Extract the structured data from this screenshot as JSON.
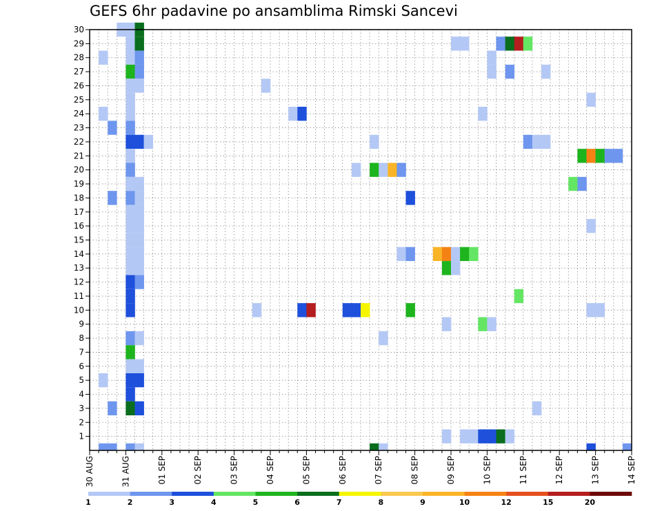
{
  "title": "GEFS 6hr padavine po ansamblima Rimski Sancevi",
  "chart_data": {
    "type": "heatmap",
    "title": "GEFS 6hr padavine po ansamblima Rimski Sancevi",
    "xlabel": "",
    "ylabel": "",
    "x_ticks": [
      "30 AUG",
      "31 AUG",
      "01 SEP",
      "02 SEP",
      "03 SEP",
      "04 SEP",
      "05 SEP",
      "06 SEP",
      "07 SEP",
      "08 SEP",
      "09 SEP",
      "10 SEP",
      "11 SEP",
      "12 SEP",
      "13 SEP",
      "14 SEP"
    ],
    "x_step_hours": 6,
    "y_ticks": [
      1,
      2,
      3,
      4,
      5,
      6,
      7,
      8,
      9,
      10,
      11,
      12,
      13,
      14,
      15,
      16,
      17,
      18,
      19,
      20,
      21,
      22,
      23,
      24,
      25,
      26,
      27,
      28,
      29,
      30
    ],
    "ylim": [
      0,
      30
    ],
    "grid": true,
    "color_scale": {
      "labels": [
        "1",
        "2",
        "3",
        "4",
        "5",
        "6",
        "7",
        "8",
        "9",
        "10",
        "12",
        "15",
        "20"
      ],
      "colors": [
        "#b4c8f5",
        "#6e96ee",
        "#1e50dc",
        "#64e664",
        "#1eb41e",
        "#0a6e1e",
        "#f5f500",
        "#fac850",
        "#fab428",
        "#f58214",
        "#e6501e",
        "#b41e1e",
        "#6e0a0a"
      ]
    },
    "cells": [
      [
        1,
        30,
        1
      ],
      [
        1,
        29,
        1
      ],
      [
        1,
        28,
        1
      ],
      [
        1,
        27,
        5
      ],
      [
        1,
        26,
        1
      ],
      [
        1,
        25,
        1
      ],
      [
        1,
        24,
        1
      ],
      [
        1,
        23,
        2
      ],
      [
        1,
        22,
        3
      ],
      [
        1,
        21,
        1
      ],
      [
        1,
        20,
        2
      ],
      [
        1,
        19,
        1
      ],
      [
        1,
        18,
        2
      ],
      [
        1,
        17,
        1
      ],
      [
        1,
        16,
        1
      ],
      [
        1,
        15,
        1
      ],
      [
        1,
        14,
        1
      ],
      [
        1,
        13,
        1
      ],
      [
        1,
        12,
        3
      ],
      [
        1,
        11,
        3
      ],
      [
        1,
        10,
        3
      ],
      [
        1,
        8,
        2
      ],
      [
        1,
        7,
        5
      ],
      [
        1,
        6,
        1
      ],
      [
        1,
        5,
        3
      ],
      [
        1,
        4,
        3
      ],
      [
        1,
        3,
        6
      ],
      [
        1,
        0,
        2
      ],
      [
        0.75,
        30,
        1
      ],
      [
        1.25,
        30,
        6
      ],
      [
        1.25,
        29,
        6
      ],
      [
        0.25,
        28,
        1
      ],
      [
        1.25,
        28,
        2
      ],
      [
        1.25,
        27,
        2
      ],
      [
        1.25,
        26,
        1
      ],
      [
        0.25,
        24,
        1
      ],
      [
        0.5,
        23,
        2
      ],
      [
        1.25,
        22,
        3
      ],
      [
        1.5,
        22,
        1
      ],
      [
        1.25,
        19,
        1
      ],
      [
        0.5,
        18,
        2
      ],
      [
        1.25,
        18,
        1
      ],
      [
        1.25,
        17,
        1
      ],
      [
        1.25,
        16,
        1
      ],
      [
        1.25,
        15,
        1
      ],
      [
        1.25,
        14,
        1
      ],
      [
        1.25,
        13,
        1
      ],
      [
        1.25,
        12,
        2
      ],
      [
        1.25,
        8,
        1
      ],
      [
        1.25,
        6,
        1
      ],
      [
        0.25,
        5,
        1
      ],
      [
        1.25,
        5,
        3
      ],
      [
        0.5,
        3,
        2
      ],
      [
        1.25,
        3,
        3
      ],
      [
        0.25,
        0,
        2
      ],
      [
        0.5,
        0,
        2
      ],
      [
        1.25,
        0,
        1
      ],
      [
        4.75,
        26,
        1
      ],
      [
        5.5,
        24,
        1
      ],
      [
        5.75,
        24,
        3
      ],
      [
        4.5,
        10,
        1
      ],
      [
        5.75,
        10,
        3
      ],
      [
        6.0,
        10,
        12
      ],
      [
        7.0,
        10,
        3
      ],
      [
        7.25,
        10,
        3
      ],
      [
        7.5,
        10,
        7
      ],
      [
        7.25,
        20,
        1
      ],
      [
        7.75,
        22,
        1
      ],
      [
        7.75,
        20,
        5
      ],
      [
        8.0,
        20,
        1
      ],
      [
        8.25,
        20,
        9
      ],
      [
        8.5,
        20,
        2
      ],
      [
        8.0,
        8,
        1
      ],
      [
        7.75,
        0,
        6
      ],
      [
        8.0,
        0,
        1
      ],
      [
        8.75,
        18,
        3
      ],
      [
        8.5,
        14,
        1
      ],
      [
        8.75,
        14,
        2
      ],
      [
        8.75,
        10,
        5
      ],
      [
        9.5,
        14,
        9
      ],
      [
        9.75,
        14,
        10
      ],
      [
        10.0,
        14,
        1
      ],
      [
        9.75,
        13,
        5
      ],
      [
        10.0,
        13,
        1
      ],
      [
        10.25,
        14,
        5
      ],
      [
        10.5,
        14,
        4
      ],
      [
        9.75,
        9,
        1
      ],
      [
        10.75,
        9,
        4
      ],
      [
        11.0,
        9,
        1
      ],
      [
        9.75,
        1,
        1
      ],
      [
        10.25,
        1,
        1
      ],
      [
        10.5,
        1,
        1
      ],
      [
        10.75,
        1,
        3
      ],
      [
        11.0,
        1,
        3
      ],
      [
        11.25,
        1,
        6
      ],
      [
        11.5,
        1,
        1
      ],
      [
        10.0,
        29,
        1
      ],
      [
        10.25,
        29,
        1
      ],
      [
        10.75,
        24,
        1
      ],
      [
        11.25,
        29,
        2
      ],
      [
        11.5,
        29,
        6
      ],
      [
        11.75,
        29,
        12
      ],
      [
        12.0,
        29,
        4
      ],
      [
        11.0,
        28,
        1
      ],
      [
        11.0,
        27,
        1
      ],
      [
        11.5,
        27,
        2
      ],
      [
        12.5,
        27,
        1
      ],
      [
        12.0,
        22,
        2
      ],
      [
        12.25,
        22,
        1
      ],
      [
        12.5,
        22,
        1
      ],
      [
        11.75,
        11,
        4
      ],
      [
        12.25,
        3,
        1
      ],
      [
        13.5,
        21,
        5
      ],
      [
        13.75,
        21,
        10
      ],
      [
        14.0,
        21,
        5
      ],
      [
        14.25,
        21,
        2
      ],
      [
        14.5,
        21,
        2
      ],
      [
        13.25,
        19,
        4
      ],
      [
        13.5,
        19,
        2
      ],
      [
        13.75,
        25,
        1
      ],
      [
        13.75,
        16,
        1
      ],
      [
        13.75,
        10,
        1
      ],
      [
        14.0,
        10,
        1
      ],
      [
        13.75,
        0,
        3
      ],
      [
        14.75,
        0,
        2
      ]
    ]
  }
}
